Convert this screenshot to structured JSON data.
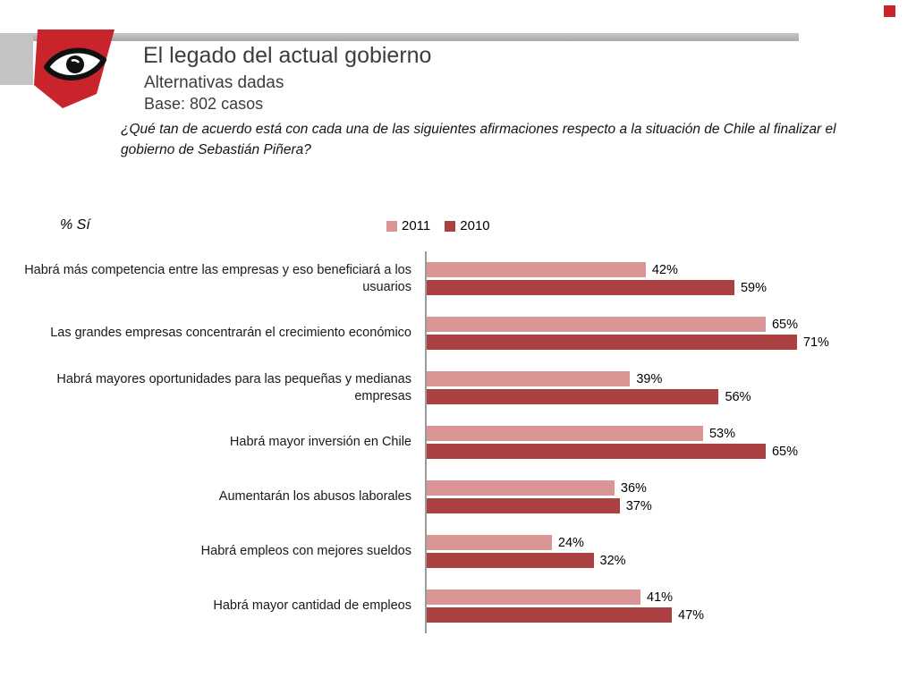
{
  "header": {
    "title": "El legado del actual gobierno",
    "subtitle": "Alternativas dadas",
    "base": "Base: 802 casos",
    "question": "¿Qué tan de acuerdo está con cada una de las siguientes afirmaciones respecto a la situación de Chile al finalizar el gobierno de Sebastián Piñera?"
  },
  "chart_data": {
    "type": "bar",
    "orientation": "horizontal",
    "unit_label": "% Sí",
    "title": "El legado del actual gobierno",
    "categories": [
      "Habrá más competencia entre las empresas y eso beneficiará a los usuarios",
      "Las grandes empresas concentrarán el crecimiento económico",
      "Habrá mayores oportunidades para las pequeñas y medianas empresas",
      "Habrá mayor inversión en Chile",
      "Aumentarán los abusos laborales",
      "Habrá empleos con mejores sueldos",
      "Habrá mayor cantidad de empleos"
    ],
    "series": [
      {
        "name": "2011",
        "color": "#d99694",
        "values": [
          42,
          65,
          39,
          53,
          36,
          24,
          41
        ]
      },
      {
        "name": "2010",
        "color": "#ab4241",
        "values": [
          59,
          71,
          56,
          65,
          37,
          32,
          47
        ]
      }
    ],
    "value_suffix": "%",
    "xlim": [
      0,
      75
    ],
    "grid": false,
    "legend_position": "top"
  },
  "colors": {
    "accent_red": "#c9242b",
    "bar_2011": "#d99694",
    "bar_2010": "#ab4241",
    "header_gray": "#b3b3b3",
    "title_gray": "#3d3d3d"
  }
}
